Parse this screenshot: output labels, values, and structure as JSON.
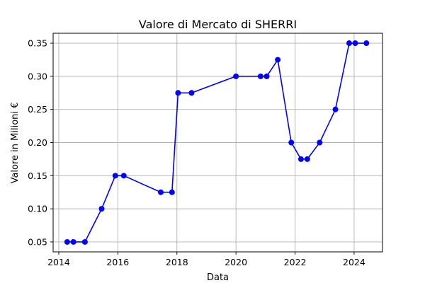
{
  "chart_data": {
    "type": "line",
    "title": "Valore di Mercato di SHERRI",
    "xlabel": "Data",
    "ylabel": "Valore in Milioni €",
    "xlim": [
      "2013-10-23",
      "2024-12-17"
    ],
    "ylim": [
      0.035,
      0.365
    ],
    "xticks": [
      "2014",
      "2016",
      "2018",
      "2020",
      "2022",
      "2024"
    ],
    "yticks": [
      "0.05",
      "0.10",
      "0.15",
      "0.20",
      "0.25",
      "0.30",
      "0.35"
    ],
    "grid": true,
    "series_color": "#0000ff",
    "marker": "circle",
    "x": [
      "2014-04-15",
      "2014-07-01",
      "2014-11-20",
      "2015-06-15",
      "2015-12-01",
      "2016-03-15",
      "2017-06-15",
      "2017-11-01",
      "2018-01-15",
      "2018-07-01",
      "2020-01-01",
      "2020-11-01",
      "2021-01-15",
      "2021-06-01",
      "2021-11-15",
      "2022-03-15",
      "2022-06-01",
      "2022-11-01",
      "2023-05-15",
      "2023-11-01",
      "2024-01-15",
      "2024-06-01"
    ],
    "values": [
      0.05,
      0.05,
      0.05,
      0.1,
      0.15,
      0.15,
      0.125,
      0.125,
      0.275,
      0.275,
      0.3,
      0.3,
      0.3,
      0.325,
      0.2,
      0.175,
      0.175,
      0.2,
      0.25,
      0.35,
      0.35,
      0.35
    ]
  }
}
